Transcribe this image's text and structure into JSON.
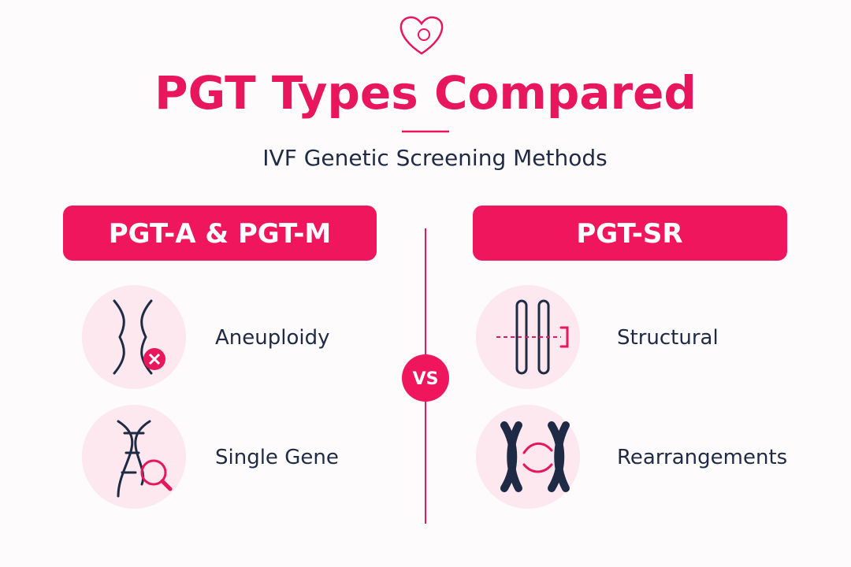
{
  "header": {
    "title": "PGT Types Compared",
    "subtitle": "IVF Genetic Screening Methods"
  },
  "left": {
    "label": "PGT-A & PGT-M",
    "items": [
      {
        "label": "Aneuploidy"
      },
      {
        "label": "Single Gene"
      }
    ]
  },
  "divider": {
    "label": "VS"
  },
  "right": {
    "label": "PGT-SR",
    "items": [
      {
        "label": "Structural"
      },
      {
        "label": "Rearrangements"
      }
    ]
  }
}
